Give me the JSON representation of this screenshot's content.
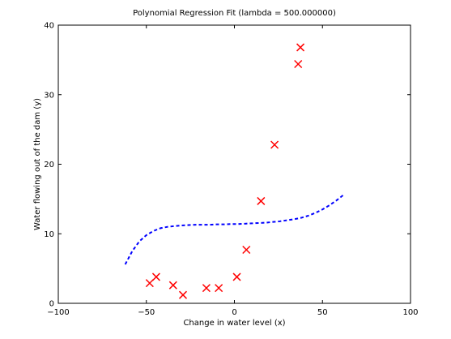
{
  "chart_data": {
    "type": "scatter",
    "title": "Polynomial Regression Fit (lambda = 500.000000)",
    "xlabel": "Change in water level (x)",
    "ylabel": "Water flowing out of the dam (y)",
    "xlim": [
      -100,
      100
    ],
    "ylim": [
      0,
      40
    ],
    "xticks": [
      -100,
      -50,
      0,
      50,
      100
    ],
    "yticks": [
      0,
      10,
      20,
      30,
      40
    ],
    "xtick_labels": [
      "−100",
      "−50",
      "0",
      "50",
      "100"
    ],
    "ytick_labels": [
      "0",
      "10",
      "20",
      "30",
      "40"
    ],
    "grid": false,
    "legend": "none",
    "series": [
      {
        "kind": "scatter",
        "marker": "x",
        "color": "#ff0000",
        "x": [
          -48.1,
          -44.4,
          -34.8,
          -29.2,
          -15.9,
          -8.9,
          1.4,
          6.8,
          15.1,
          22.8,
          36.2,
          37.5
        ],
        "y": [
          2.9,
          3.8,
          2.6,
          1.2,
          2.2,
          2.2,
          3.8,
          7.7,
          14.7,
          22.8,
          34.4,
          36.8
        ]
      },
      {
        "kind": "line",
        "style": "dashed",
        "color": "#0000ff",
        "x": [
          -62,
          -58,
          -54,
          -50,
          -46,
          -42,
          -38,
          -34,
          -30,
          -26,
          -22,
          -18,
          -14,
          -10,
          -6,
          -2,
          2,
          6,
          10,
          14,
          18,
          22,
          26,
          30,
          34,
          38,
          42,
          46,
          50,
          54,
          58,
          62
        ],
        "y": [
          5.6,
          7.5,
          8.9,
          9.8,
          10.4,
          10.8,
          11.0,
          11.1,
          11.2,
          11.25,
          11.3,
          11.3,
          11.3,
          11.35,
          11.35,
          11.4,
          11.4,
          11.45,
          11.5,
          11.55,
          11.6,
          11.7,
          11.8,
          11.95,
          12.1,
          12.3,
          12.6,
          13.0,
          13.5,
          14.1,
          14.8,
          15.6
        ]
      }
    ]
  }
}
